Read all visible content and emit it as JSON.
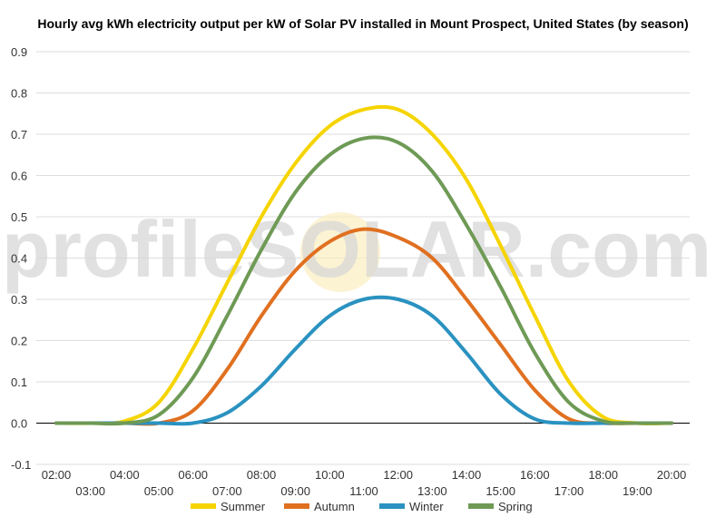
{
  "chart_data": {
    "type": "line",
    "title": "Hourly avg kWh electricity output per kW of Solar PV installed in Mount Prospect, United States (by season)",
    "watermark": "profileSOLAR.com",
    "ylim": [
      -0.1,
      0.9
    ],
    "yticks": [
      "-0.1",
      "0.0",
      "0.1",
      "0.2",
      "0.3",
      "0.4",
      "0.5",
      "0.6",
      "0.7",
      "0.8",
      "0.9"
    ],
    "xlim": [
      "02:00",
      "20:00"
    ],
    "xticks_top": [
      "02:00",
      "04:00",
      "06:00",
      "08:00",
      "10:00",
      "12:00",
      "14:00",
      "16:00",
      "18:00",
      "20:00"
    ],
    "xticks_bottom": [
      "03:00",
      "05:00",
      "07:00",
      "09:00",
      "11:00",
      "13:00",
      "15:00",
      "17:00",
      "19:00"
    ],
    "x": [
      "02:00",
      "03:00",
      "04:00",
      "05:00",
      "06:00",
      "07:00",
      "08:00",
      "09:00",
      "10:00",
      "11:00",
      "12:00",
      "13:00",
      "14:00",
      "15:00",
      "16:00",
      "17:00",
      "18:00",
      "19:00",
      "20:00"
    ],
    "series": [
      {
        "name": "Summer",
        "color": "#f5d400",
        "values": [
          0,
          0,
          0.005,
          0.05,
          0.18,
          0.34,
          0.5,
          0.63,
          0.72,
          0.76,
          0.76,
          0.7,
          0.59,
          0.43,
          0.26,
          0.1,
          0.015,
          0,
          0
        ]
      },
      {
        "name": "Autumn",
        "color": "#e07020",
        "values": [
          0,
          0,
          0,
          0,
          0.03,
          0.13,
          0.26,
          0.37,
          0.44,
          0.47,
          0.45,
          0.4,
          0.3,
          0.19,
          0.08,
          0.01,
          0,
          0,
          0
        ]
      },
      {
        "name": "Winter",
        "color": "#2a92c0",
        "values": [
          0,
          0,
          0,
          0,
          0,
          0.025,
          0.09,
          0.18,
          0.26,
          0.3,
          0.3,
          0.26,
          0.17,
          0.07,
          0.01,
          0,
          0,
          0,
          0
        ]
      },
      {
        "name": "Spring",
        "color": "#6e9a55",
        "values": [
          0,
          0,
          0,
          0.02,
          0.11,
          0.26,
          0.42,
          0.56,
          0.65,
          0.69,
          0.68,
          0.61,
          0.48,
          0.33,
          0.17,
          0.05,
          0.005,
          0,
          0
        ]
      }
    ],
    "grid": true,
    "legend_position": "bottom"
  }
}
